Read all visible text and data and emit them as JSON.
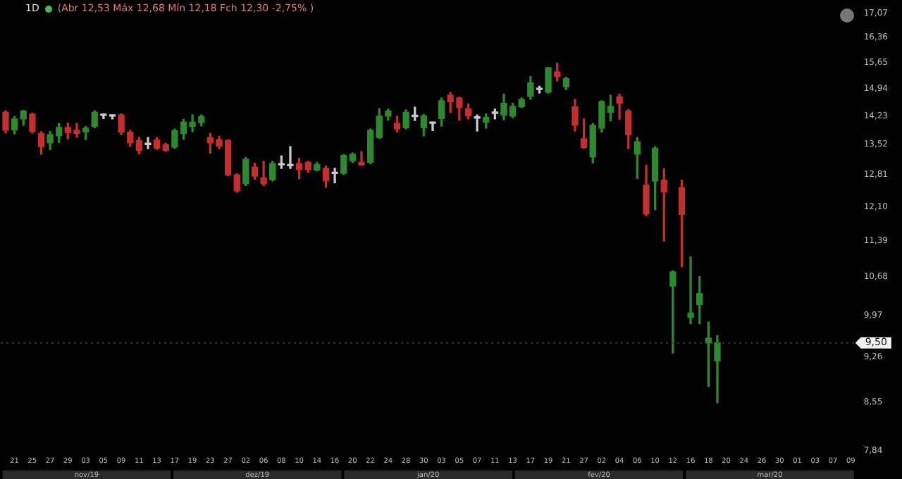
{
  "chart_data": {
    "type": "candlestick",
    "title": "1D",
    "subtitle": "(Abr 12,53 Máx 12,68 Mín 12,18 Fch 12,30 -2,75% )",
    "categories": [
      null,
      "21",
      null,
      "25",
      null,
      "27",
      null,
      "29",
      null,
      "03",
      null,
      "05",
      null,
      "09",
      null,
      "11",
      null,
      "13",
      null,
      "17",
      null,
      "19",
      null,
      "23",
      null,
      "27",
      null,
      "02",
      null,
      "06",
      null,
      "08",
      null,
      "10",
      null,
      "14",
      null,
      "16",
      null,
      "20",
      null,
      "22",
      null,
      "24",
      null,
      "28",
      null,
      "30",
      null,
      "03",
      null,
      "05",
      null,
      "07",
      null,
      "11",
      null,
      "13",
      null,
      "17",
      null,
      "19",
      null,
      "21",
      null,
      "27",
      null,
      "02",
      null,
      "04",
      null,
      "06",
      null,
      "10",
      null,
      "12",
      null,
      "16",
      null,
      "18",
      null,
      "20",
      null,
      "24",
      null,
      "26",
      null,
      "30",
      null,
      "01",
      null,
      "03",
      null,
      "07",
      null,
      "09"
    ],
    "ohlc": [
      [
        14.32,
        14.36,
        13.8,
        13.87
      ],
      [
        13.88,
        14.21,
        13.78,
        14.15
      ],
      [
        14.15,
        14.37,
        13.99,
        14.35
      ],
      [
        14.27,
        14.3,
        13.8,
        13.84
      ],
      [
        13.79,
        13.84,
        13.29,
        13.47
      ],
      [
        13.56,
        13.84,
        13.4,
        13.76
      ],
      [
        13.73,
        14.04,
        13.57,
        13.94
      ],
      [
        13.94,
        14.05,
        13.66,
        13.81
      ],
      [
        13.87,
        14.04,
        13.7,
        13.79
      ],
      [
        13.83,
        13.96,
        13.64,
        13.92
      ],
      [
        13.96,
        14.36,
        13.93,
        14.32
      ],
      [
        14.24,
        14.28,
        14.16,
        14.27
      ],
      [
        14.24,
        14.25,
        14.15,
        14.22
      ],
      [
        14.25,
        14.28,
        13.76,
        13.82
      ],
      [
        13.82,
        13.87,
        13.47,
        13.56
      ],
      [
        13.62,
        13.69,
        13.3,
        13.38
      ],
      [
        13.53,
        13.69,
        13.42,
        13.52
      ],
      [
        13.63,
        13.69,
        13.41,
        13.43
      ],
      [
        13.52,
        13.55,
        13.36,
        13.38
      ],
      [
        13.46,
        13.9,
        13.43,
        13.86
      ],
      [
        13.79,
        14.14,
        13.65,
        14.07
      ],
      [
        13.96,
        14.25,
        13.83,
        14.07
      ],
      [
        14.06,
        14.25,
        13.98,
        14.21
      ],
      [
        13.69,
        13.79,
        13.31,
        13.56
      ],
      [
        13.64,
        13.72,
        13.42,
        13.48
      ],
      [
        13.62,
        13.64,
        12.79,
        12.81
      ],
      [
        12.81,
        12.84,
        12.42,
        12.45
      ],
      [
        12.61,
        13.21,
        12.57,
        13.17
      ],
      [
        12.99,
        13.08,
        12.71,
        12.78
      ],
      [
        12.74,
        13.12,
        12.57,
        12.61
      ],
      [
        12.7,
        13.12,
        12.67,
        13.07
      ],
      [
        13.04,
        13.25,
        12.96,
        13.05
      ],
      [
        13.03,
        13.47,
        12.96,
        13.02
      ],
      [
        13.07,
        13.2,
        12.72,
        12.93
      ],
      [
        13.1,
        13.12,
        12.87,
        12.93
      ],
      [
        12.92,
        13.1,
        12.9,
        13.05
      ],
      [
        12.96,
        13.02,
        12.53,
        12.68
      ],
      [
        12.84,
        12.96,
        12.63,
        12.85
      ],
      [
        12.85,
        13.28,
        12.82,
        13.26
      ],
      [
        13.14,
        13.32,
        13.1,
        13.29
      ],
      [
        13.1,
        13.35,
        13.03,
        13.04
      ],
      [
        13.1,
        13.9,
        13.07,
        13.87
      ],
      [
        13.69,
        14.41,
        13.67,
        14.22
      ],
      [
        14.22,
        14.4,
        14.12,
        14.35
      ],
      [
        14.04,
        14.22,
        13.83,
        13.9
      ],
      [
        13.93,
        14.38,
        13.9,
        14.32
      ],
      [
        14.21,
        14.45,
        14.11,
        14.22
      ],
      [
        13.93,
        14.26,
        13.73,
        14.23
      ],
      [
        14.05,
        14.07,
        13.86,
        14.04
      ],
      [
        14.16,
        14.69,
        13.97,
        14.62
      ],
      [
        14.76,
        14.83,
        14.31,
        14.59
      ],
      [
        14.69,
        14.71,
        14.12,
        14.44
      ],
      [
        14.41,
        14.53,
        14.15,
        14.23
      ],
      [
        14.17,
        14.25,
        13.85,
        14.17
      ],
      [
        14.07,
        14.28,
        13.92,
        14.19
      ],
      [
        14.29,
        14.4,
        14.15,
        14.3
      ],
      [
        14.25,
        14.79,
        14.13,
        14.55
      ],
      [
        14.22,
        14.55,
        14.18,
        14.47
      ],
      [
        14.46,
        14.69,
        14.44,
        14.65
      ],
      [
        14.73,
        15.26,
        14.65,
        15.09
      ],
      [
        14.91,
        15.0,
        14.82,
        14.92
      ],
      [
        14.84,
        15.51,
        14.82,
        15.5
      ],
      [
        15.39,
        15.62,
        15.14,
        15.26
      ],
      [
        14.98,
        15.24,
        14.91,
        15.2
      ],
      [
        14.46,
        14.65,
        13.85,
        13.99
      ],
      [
        13.66,
        14.15,
        13.43,
        13.45
      ],
      [
        13.23,
        14.04,
        13.08,
        13.99
      ],
      [
        13.92,
        14.62,
        13.82,
        14.59
      ],
      [
        14.32,
        14.76,
        14.1,
        14.47
      ],
      [
        14.72,
        14.79,
        14.14,
        14.55
      ],
      [
        14.35,
        14.39,
        13.43,
        13.76
      ],
      [
        13.29,
        13.69,
        12.73,
        13.59
      ],
      [
        12.58,
        13.03,
        11.91,
        11.95
      ],
      [
        12.67,
        13.47,
        12.04,
        13.43
      ],
      [
        12.69,
        12.95,
        11.39,
        12.43
      ],
      [
        10.51,
        10.8,
        9.33,
        10.78
      ],
      [
        12.52,
        12.69,
        10.88,
        11.94
      ],
      [
        9.94,
        11.07,
        9.83,
        10.02
      ],
      [
        10.17,
        10.69,
        9.83,
        10.37
      ],
      [
        9.5,
        9.86,
        8.79,
        9.58
      ],
      [
        9.2,
        9.62,
        8.54,
        9.5
      ],
      null,
      null,
      null,
      null,
      null,
      null,
      null,
      null,
      null,
      null,
      null,
      null,
      null,
      null,
      null
    ],
    "colors": [
      "#c62d2d",
      "#2b8a2b",
      "#2b8a2b",
      "#c62d2d",
      "#c62d2d",
      "#2b8a2b",
      "#2b8a2b",
      "#c62d2d",
      "#c62d2d",
      "#2b8a2b",
      "#2b8a2b",
      "#c8c8c8",
      "#c8c8c8",
      "#c62d2d",
      "#c62d2d",
      "#c62d2d",
      "#c8c8c8",
      "#c62d2d",
      "#c62d2d",
      "#2b8a2b",
      "#2b8a2b",
      "#2b8a2b",
      "#2b8a2b",
      "#c62d2d",
      "#c62d2d",
      "#c62d2d",
      "#c62d2d",
      "#2b8a2b",
      "#c62d2d",
      "#c62d2d",
      "#2b8a2b",
      "#c8c8c8",
      "#c8c8c8",
      "#c62d2d",
      "#c62d2d",
      "#2b8a2b",
      "#c62d2d",
      "#c8c8c8",
      "#2b8a2b",
      "#2b8a2b",
      "#c62d2d",
      "#2b8a2b",
      "#2b8a2b",
      "#2b8a2b",
      "#c62d2d",
      "#2b8a2b",
      "#c8c8c8",
      "#2b8a2b",
      "#c8c8c8",
      "#2b8a2b",
      "#c62d2d",
      "#c62d2d",
      "#c62d2d",
      "#c8c8c8",
      "#2b8a2b",
      "#c8c8c8",
      "#2b8a2b",
      "#2b8a2b",
      "#2b8a2b",
      "#2b8a2b",
      "#c8c8c8",
      "#2b8a2b",
      "#c62d2d",
      "#2b8a2b",
      "#c62d2d",
      "#c62d2d",
      "#2b8a2b",
      "#2b8a2b",
      "#2b8a2b",
      "#c62d2d",
      "#c62d2d",
      "#2b8a2b",
      "#c62d2d",
      "#2b8a2b",
      "#c62d2d",
      "#2b8a2b",
      "#c62d2d",
      "#2b8a2b",
      "#2b8a2b",
      "#2b8a2b",
      "#2b8a2b",
      null,
      null,
      null,
      null,
      null,
      null,
      null,
      null,
      null,
      null,
      null,
      null,
      null,
      null,
      null
    ],
    "log": true,
    "ylim": [
      7.84,
      17.07
    ],
    "yticks": [
      {
        "value": 7.84,
        "label": "7,84"
      },
      {
        "value": 8.55,
        "label": "8,55"
      },
      {
        "value": 9.26,
        "label": "9,26"
      },
      {
        "value": 9.97,
        "label": "9,97"
      },
      {
        "value": 10.68,
        "label": "10,68"
      },
      {
        "value": 11.39,
        "label": "11,39"
      },
      {
        "value": 12.1,
        "label": "12,10"
      },
      {
        "value": 12.81,
        "label": "12,81"
      },
      {
        "value": 13.52,
        "label": "13,52"
      },
      {
        "value": 14.23,
        "label": "14,23"
      },
      {
        "value": 14.94,
        "label": "14,94"
      },
      {
        "value": 15.65,
        "label": "15,65"
      },
      {
        "value": 16.36,
        "label": "16,36"
      },
      {
        "value": 17.07,
        "label": "17,07"
      }
    ],
    "ref_lines": [
      {
        "axis": "y",
        "value": 9.5,
        "label": "9,50"
      }
    ],
    "annotations": [
      "nov/19",
      "dez/19",
      "jan/20",
      "fev/20",
      "mar/20"
    ],
    "legend": false
  }
}
